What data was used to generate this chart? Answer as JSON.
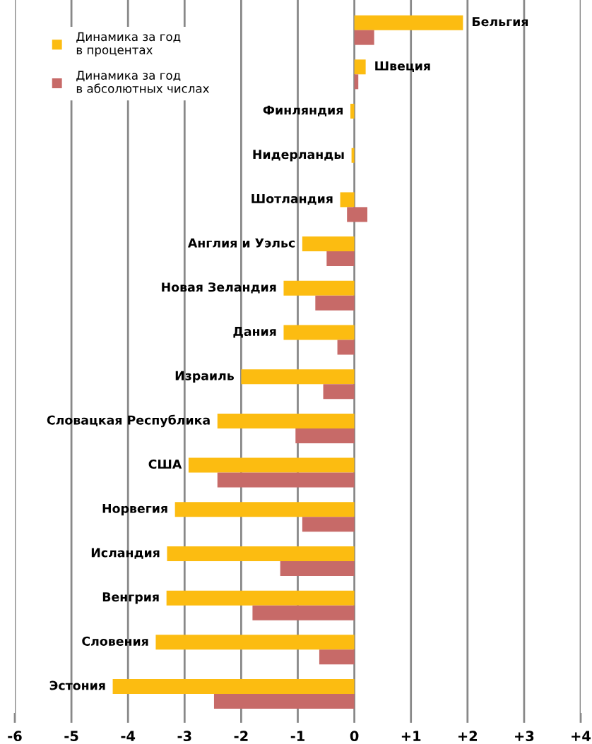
{
  "chart_data": {
    "type": "bar",
    "orientation": "horizontal",
    "categories": [
      "Бельгия",
      "Швеция",
      "Финляндия",
      "Нидерланды",
      "Шотландия",
      "Англия и Уэльс",
      "Новая Зеландия",
      "Дания",
      "Израиль",
      "Словацкая Республика",
      "США",
      "Норвегия",
      "Исландия",
      "Венгрия",
      "Словения",
      "Эстония"
    ],
    "series": [
      {
        "name": "Динамика за год\nв процентах",
        "color": "#fcbc11",
        "values": [
          1.92,
          0.2,
          -0.07,
          -0.05,
          -0.25,
          -0.92,
          -1.25,
          -1.25,
          -2.0,
          -2.42,
          -2.93,
          -3.17,
          -3.31,
          -3.32,
          -3.51,
          -4.27
        ]
      },
      {
        "name": "Динамика за год\nв абсолютных числах",
        "color": "#c76a68",
        "values": [
          0.35,
          0.07,
          0,
          0,
          0.36,
          -0.49,
          -0.69,
          -0.3,
          -0.55,
          -1.04,
          -2.42,
          -0.92,
          -1.31,
          -1.8,
          -0.62,
          -2.48
        ],
        "base": [
          null,
          null,
          null,
          null,
          -0.13,
          null,
          null,
          null,
          null,
          null,
          null,
          null,
          null,
          null,
          null,
          null
        ]
      }
    ],
    "xlim": [
      -6,
      4
    ],
    "xticks": [
      -6,
      -5,
      -4,
      -3,
      -2,
      -1,
      0,
      {
        "value": 1,
        "label": "+1"
      },
      {
        "value": 2,
        "label": "+2"
      },
      {
        "value": 3,
        "label": "+3"
      },
      {
        "value": 4,
        "label": "+4"
      }
    ],
    "grid": "x",
    "legend": "top left",
    "tick_labels": "x"
  }
}
